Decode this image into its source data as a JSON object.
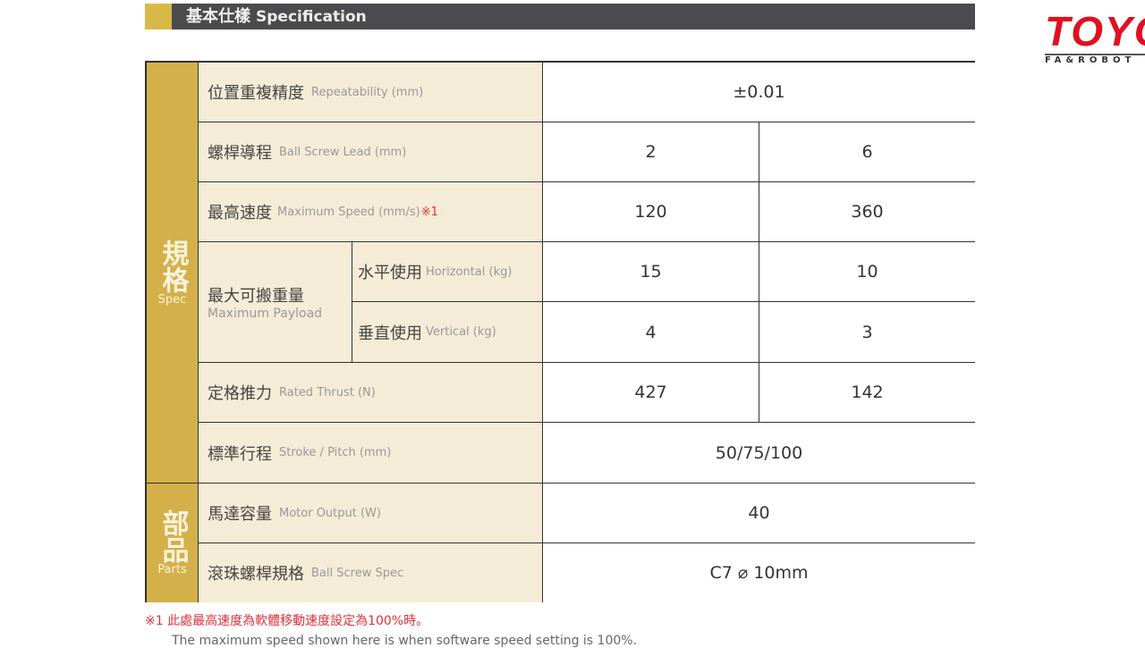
{
  "header": {
    "title_zh": "基本仕樣",
    "title_en": "Specification"
  },
  "logo": {
    "brand": "TOYO",
    "tagline": "FA&ROBOT"
  },
  "sections": {
    "spec": {
      "zh": "規格",
      "en": "Spec"
    },
    "parts": {
      "zh": "部品",
      "en": "Parts"
    }
  },
  "rows": [
    {
      "zh": "位置重複精度",
      "en": "Repeatability (mm)",
      "values": [
        "±0.01"
      ]
    },
    {
      "zh": "螺桿導程",
      "en": "Ball Screw Lead (mm)",
      "values": [
        "2",
        "6"
      ]
    },
    {
      "zh": "最高速度",
      "en": "Maximum Speed (mm/s)",
      "mark": "※1",
      "values": [
        "120",
        "360"
      ]
    },
    {
      "zh": "水平使用",
      "en": "Horizontal (kg)",
      "values": [
        "15",
        "10"
      ]
    },
    {
      "zh": "垂直使用",
      "en": "Vertical (kg)",
      "values": [
        "4",
        "3"
      ]
    },
    {
      "zh": "定格推力",
      "en": "Rated Thrust (N)",
      "values": [
        "427",
        "142"
      ]
    },
    {
      "zh": "標準行程",
      "en": "Stroke / Pitch (mm)",
      "values": [
        "50/75/100"
      ]
    },
    {
      "zh": "馬達容量",
      "en": "Motor Output (W)",
      "values": [
        "40"
      ]
    },
    {
      "zh": "滾珠螺桿規格",
      "en": "Ball Screw Spec",
      "values": [
        "C7 ⌀ 10mm"
      ]
    }
  ],
  "payload": {
    "zh": "最大可搬重量",
    "en": "Maximum Payload"
  },
  "notes": {
    "zh": "※1 此處最高速度為軟體移動速度設定為100%時。",
    "en": "The maximum speed shown here is when software speed setting is 100%."
  },
  "colors": {
    "gold": "#d4b04a",
    "header_dark": "#4b4a4f",
    "label_bg": "#f5ecd7",
    "logo_red": "#e01020",
    "note_red": "#e0303a"
  }
}
